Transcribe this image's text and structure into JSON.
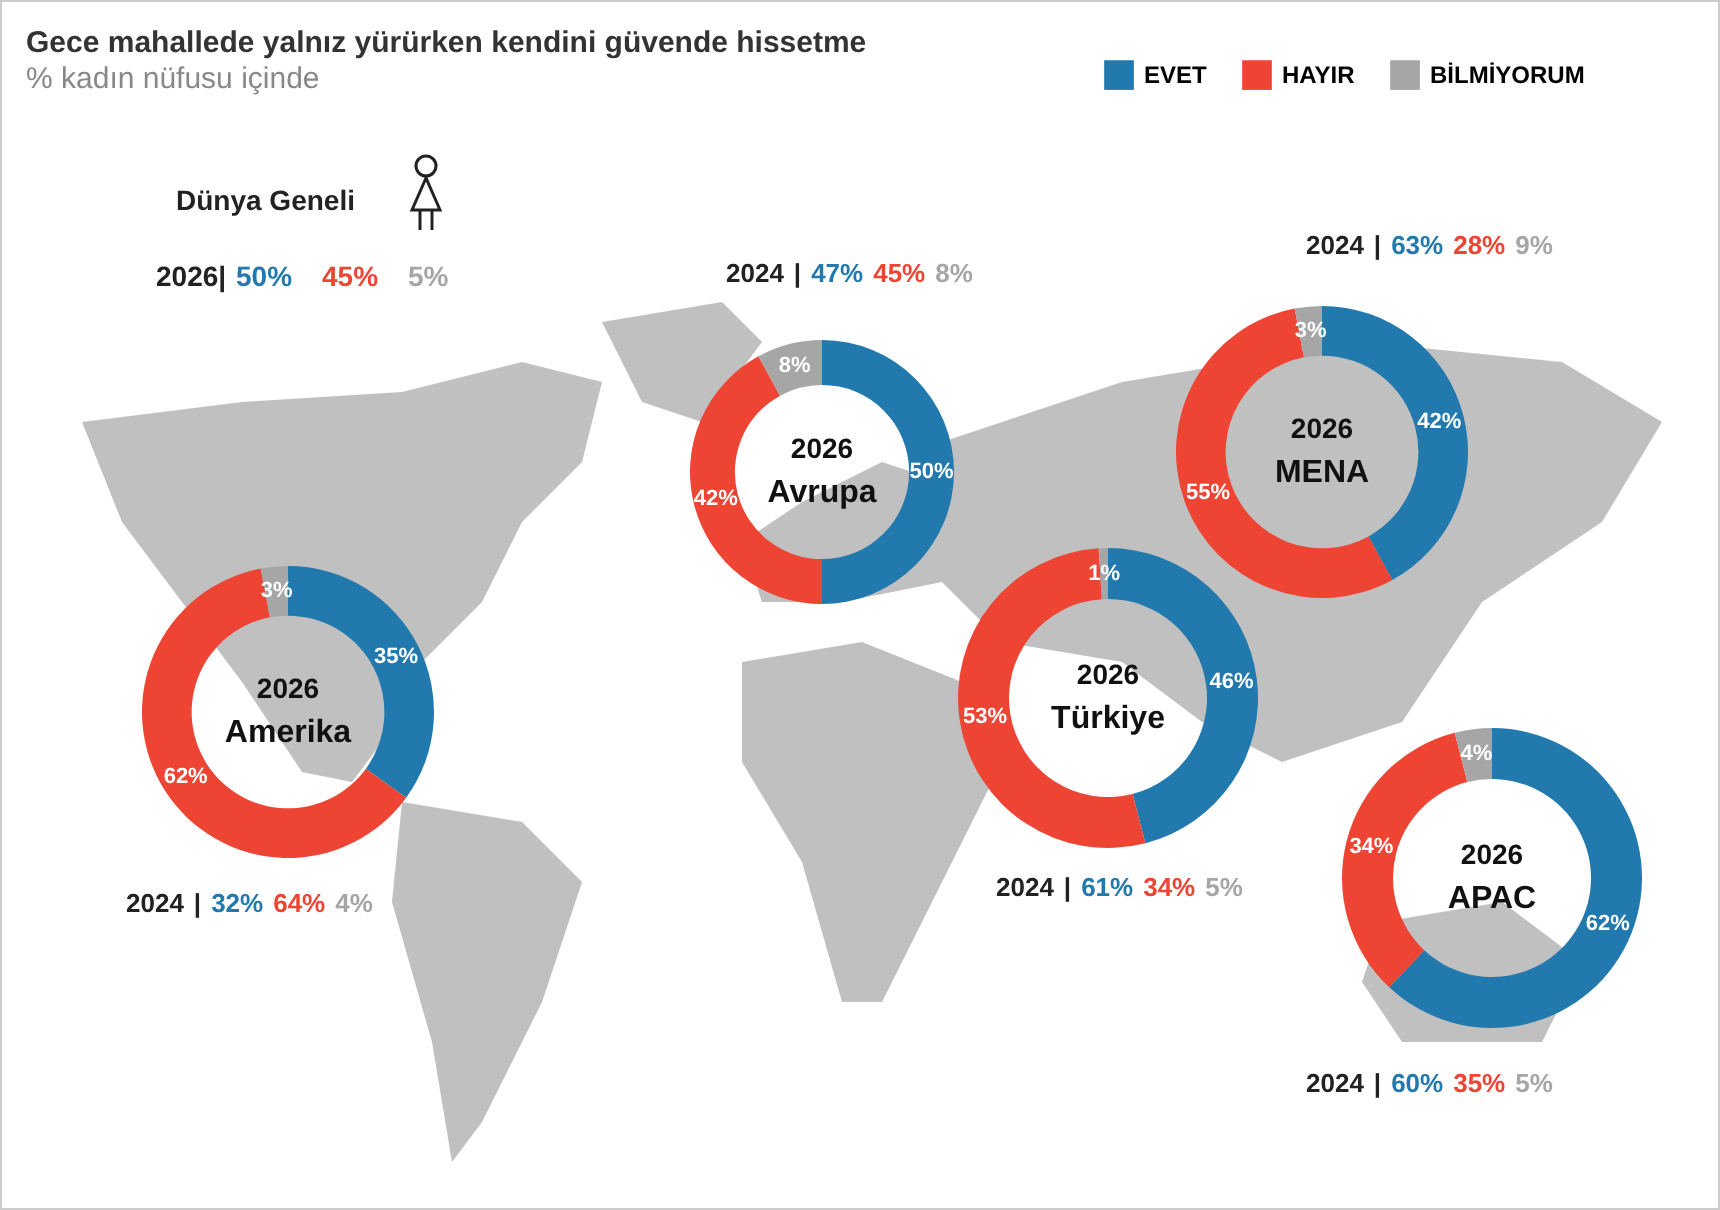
{
  "chart_data": [
    {
      "type": "other",
      "title": "Gece mahallede yalnız yürürken kendini güvende hissetme",
      "subtitle": "% kadın nüfusu içinde",
      "annotations": [
        "Dünya Geneli",
        "2026|",
        "50%",
        "45%",
        "5%"
      ]
    },
    {
      "type": "donut",
      "title": "Avrupa",
      "subtitle": "2026",
      "categories": [
        "EVET",
        "HAYIR",
        "BİLMİYORUM"
      ],
      "colors": [
        "#2179ae",
        "#ee4433",
        "#a6a6a6"
      ],
      "values": [
        50,
        42,
        8
      ],
      "value_labels": [
        "50%",
        "42%",
        "8%"
      ],
      "annotations": [
        "2024 | 47% 45% 8%"
      ],
      "legend": "top right"
    },
    {
      "type": "donut",
      "title": "MENA",
      "subtitle": "2026",
      "categories": [
        null,
        null,
        null
      ],
      "colors": [
        "#2179ae",
        "#ee4433",
        "#a6a6a6"
      ],
      "values": [
        42,
        55,
        3
      ],
      "value_labels": [
        "42%",
        "55%",
        "3%"
      ],
      "annotations": [
        "2024 | 63% 28% 9%"
      ]
    },
    {
      "type": "donut",
      "title": "Amerika",
      "subtitle": "2026",
      "categories": [
        null,
        null,
        null
      ],
      "colors": [
        "#2179ae",
        "#ee4433",
        "#a6a6a6"
      ],
      "values": [
        35,
        62,
        3
      ],
      "value_labels": [
        "35%",
        "62%",
        "3%"
      ],
      "annotations": [
        "2024 | 32% 64% 4%"
      ]
    },
    {
      "type": "donut",
      "title": "Türkiye",
      "subtitle": "2026",
      "categories": [
        null,
        null,
        null
      ],
      "colors": [
        "#2179ae",
        "#ee4433",
        "#a6a6a6"
      ],
      "values": [
        46,
        53,
        1
      ],
      "value_labels": [
        "46%",
        "53%",
        "1%"
      ],
      "annotations": [
        "2024 | 61% 34% 5%"
      ]
    },
    {
      "type": "donut",
      "title": "APAC",
      "subtitle": "2026",
      "categories": [
        null,
        null,
        null
      ],
      "colors": [
        "#2179ae",
        "#ee4433",
        "#a6a6a6"
      ],
      "values": [
        62,
        34,
        4
      ],
      "value_labels": [
        "62%",
        "34%",
        "4%"
      ],
      "annotations": [
        "2024 | 60% 35% 5%"
      ]
    }
  ]
}
